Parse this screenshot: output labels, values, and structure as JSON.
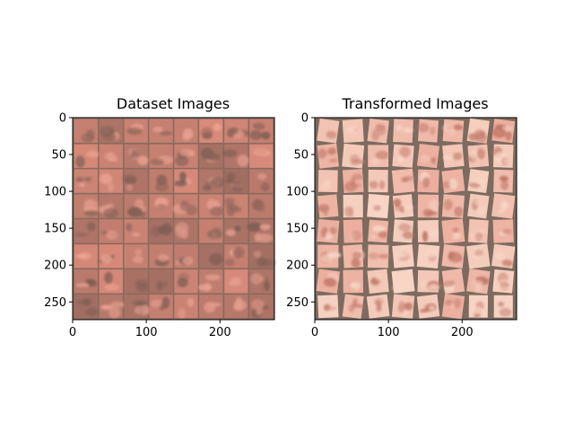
{
  "figure": {
    "background": "#ffffff"
  },
  "chart_data": [
    {
      "type": "image-grid",
      "title": "Dataset Images",
      "xlim": [
        0,
        274
      ],
      "ylim": [
        274,
        0
      ],
      "xticks": [
        0,
        100,
        200
      ],
      "yticks": [
        0,
        50,
        100,
        150,
        200,
        250
      ],
      "grid": {
        "rows": 8,
        "cols": 8,
        "tile_px": 32,
        "padding_px": 2
      },
      "dominant_colors": {
        "border": "#8a6a5e",
        "tile_base": "#d98a7a",
        "tile_light": "#f0a898",
        "tile_dark": "#7a5a50"
      }
    },
    {
      "type": "image-grid",
      "title": "Transformed Images",
      "xlim": [
        0,
        274
      ],
      "ylim": [
        274,
        0
      ],
      "xticks": [
        0,
        100,
        200
      ],
      "yticks": [
        0,
        50,
        100,
        150,
        200,
        250
      ],
      "grid": {
        "rows": 8,
        "cols": 8,
        "tile_px": 32,
        "padding_px": 2
      },
      "dominant_colors": {
        "border": "#7d6b5f",
        "tile_base": "#e8a090",
        "tile_light": "#f8d8c8",
        "tile_dark": "#b86a5a"
      }
    }
  ]
}
